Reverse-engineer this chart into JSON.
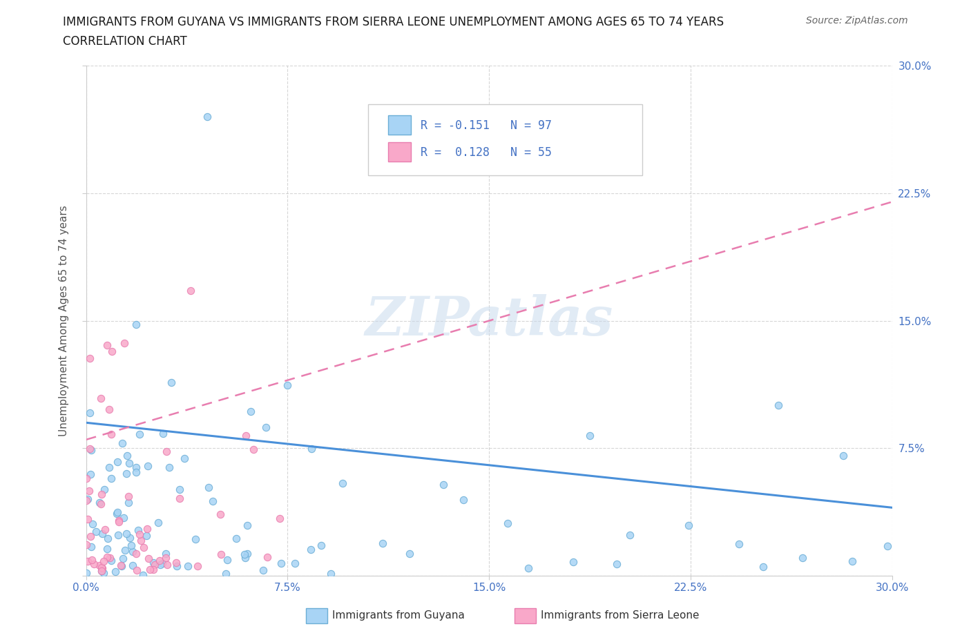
{
  "title_line1": "IMMIGRANTS FROM GUYANA VS IMMIGRANTS FROM SIERRA LEONE UNEMPLOYMENT AMONG AGES 65 TO 74 YEARS",
  "title_line2": "CORRELATION CHART",
  "source_text": "Source: ZipAtlas.com",
  "ylabel": "Unemployment Among Ages 65 to 74 years",
  "xlim": [
    0.0,
    0.3
  ],
  "ylim": [
    0.0,
    0.3
  ],
  "guyana_color": "#A8D4F5",
  "guyana_edge_color": "#6BAED6",
  "sierra_leone_color": "#F9A8C9",
  "sierra_leone_edge_color": "#E87DAF",
  "guyana_line_color": "#4A90D9",
  "sierra_leone_line_color": "#E87DAF",
  "guyana_R": -0.151,
  "guyana_N": 97,
  "sierra_leone_R": 0.128,
  "sierra_leone_N": 55,
  "watermark": "ZIPatlas",
  "background_color": "#FFFFFF",
  "tick_color": "#4472C4",
  "label_color": "#555555"
}
